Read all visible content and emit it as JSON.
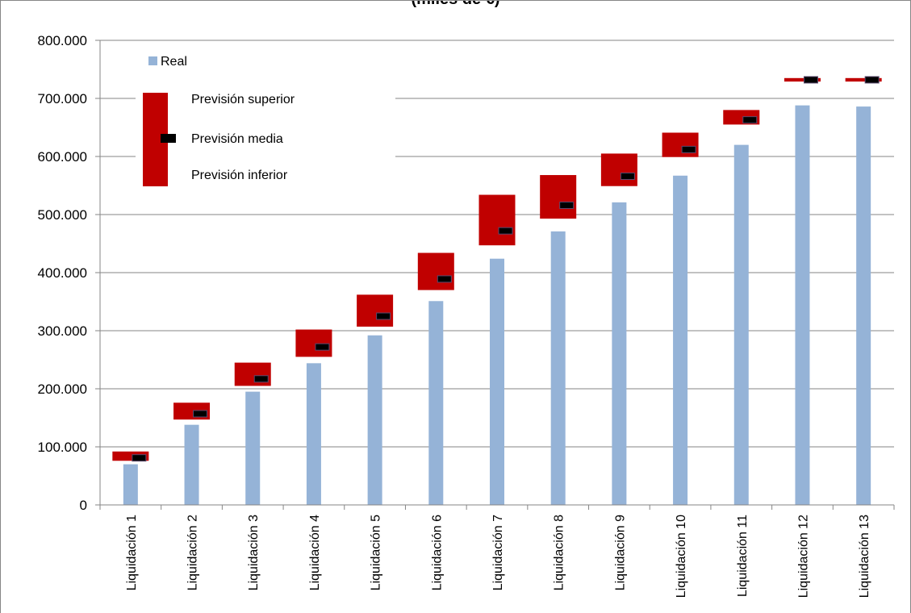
{
  "chart_data": {
    "type": "bar",
    "title": "(miles de €)",
    "xlabel": "",
    "ylabel": "",
    "ylim": [
      0,
      800000
    ],
    "y_ticks": [
      0,
      100000,
      200000,
      300000,
      400000,
      500000,
      600000,
      700000,
      800000
    ],
    "y_tick_labels": [
      "0",
      "100.000",
      "200.000",
      "300.000",
      "400.000",
      "500.000",
      "600.000",
      "700.000",
      "800.000"
    ],
    "grid": true,
    "legend_position": "top-left",
    "categories": [
      "Liquidación 1",
      "Liquidación 2",
      "Liquidación 3",
      "Liquidación 4",
      "Liquidación 5",
      "Liquidación 6",
      "Liquidación 7",
      "Liquidación 8",
      "Liquidación 9",
      "Liquidación 10",
      "Liquidación 11",
      "Liquidación 12",
      "Liquidación 13"
    ],
    "series": [
      {
        "name": "Real",
        "kind": "bar",
        "color": "#95b3d7",
        "values": [
          70000,
          138000,
          195000,
          244000,
          292000,
          351000,
          424000,
          471000,
          521000,
          567000,
          620000,
          688000,
          686000
        ]
      },
      {
        "name": "Previsión superior",
        "kind": "range-top",
        "color": "#c00000",
        "values": [
          92000,
          176000,
          245000,
          302000,
          362000,
          434000,
          534000,
          568000,
          605000,
          641000,
          680000,
          735000,
          735000
        ]
      },
      {
        "name": "Previsión media",
        "kind": "marker",
        "color": "#000000",
        "values": [
          81000,
          157000,
          217000,
          272000,
          325000,
          389000,
          472000,
          516000,
          566000,
          612000,
          663000,
          732000,
          732000
        ]
      },
      {
        "name": "Previsión inferior",
        "kind": "range-bottom",
        "color": "#c00000",
        "values": [
          76000,
          147000,
          205000,
          255000,
          307000,
          370000,
          447000,
          493000,
          549000,
          599000,
          655000,
          729000,
          729000
        ]
      }
    ]
  }
}
